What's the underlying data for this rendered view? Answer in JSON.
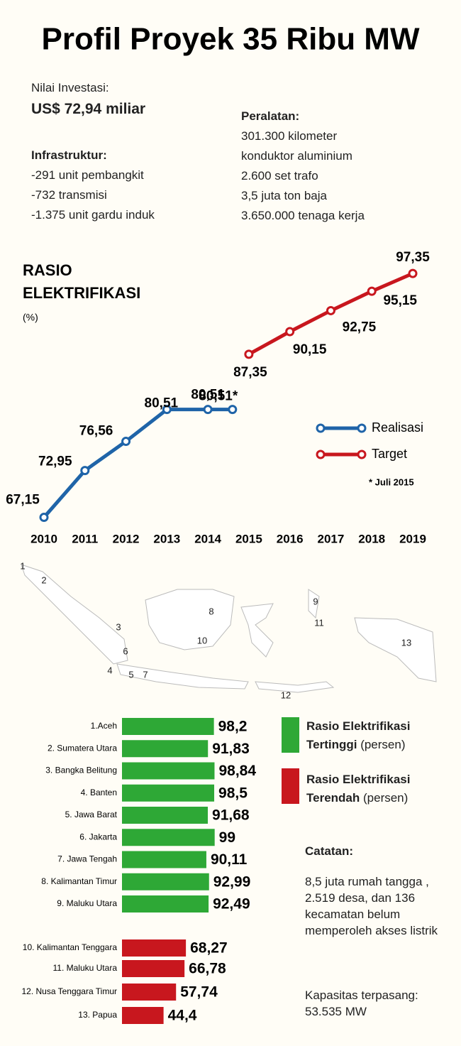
{
  "header": {
    "title": "Profil Proyek 35 Ribu MW"
  },
  "investment": {
    "label": "Nilai Investasi:",
    "value": "US$ 72,94 miliar"
  },
  "infrastructure": {
    "label": "Infrastruktur:",
    "items": [
      "-291 unit pembangkit",
      "-732 transmisi",
      "-1.375 unit gardu induk"
    ]
  },
  "equipment": {
    "label": "Peralatan:",
    "items": [
      "301.300 kilometer",
      "konduktor aluminium",
      "2.600 set trafo",
      "3,5 juta ton baja",
      "3.650.000 tenaga kerja"
    ]
  },
  "map": {
    "labels": [
      "1",
      "2",
      "3",
      "4",
      "5",
      "6",
      "7",
      "8",
      "9",
      "10",
      "11",
      "12",
      "13"
    ]
  },
  "notes": {
    "label": "Catatan:",
    "text": "8,5 juta rumah tangga , 2.519 desa, dan 136 kecamatan belum memperoleh akses listrik",
    "capacity": "Kapasitas terpasang: 53.535 MW"
  },
  "chart_data": [
    {
      "type": "line",
      "title": "RASIO ELEKTRIFIKASI",
      "subtitle": "(%)",
      "note": "* Juli 2015",
      "xlim": [
        2010,
        2019
      ],
      "xticks": [
        2010,
        2011,
        2012,
        2013,
        2014,
        2015,
        2016,
        2017,
        2018,
        2019
      ],
      "ylim": [
        65,
        100
      ],
      "series": [
        {
          "name": "Realisasi",
          "color": "#1f64a8",
          "x": [
            2010,
            2011,
            2012,
            2013,
            2014,
            2014.6
          ],
          "values": [
            67.15,
            72.95,
            76.56,
            80.51,
            80.51,
            80.51
          ],
          "value_labels": [
            "67,15",
            "72,95",
            "76,56",
            "80,51",
            "80,51",
            "80,51*"
          ]
        },
        {
          "name": "Target",
          "color": "#c8171e",
          "x": [
            2015,
            2016,
            2017,
            2018,
            2019
          ],
          "values": [
            87.35,
            90.15,
            92.75,
            95.15,
            97.35
          ],
          "value_labels": [
            "87,35",
            "90,15",
            "92,75",
            "95,15",
            "97,35"
          ]
        }
      ]
    },
    {
      "type": "hbar",
      "name": "Rasio Elektrifikasi Tertinggi",
      "unit": "(persen)",
      "color": "#2ea836",
      "xlim": [
        0,
        100
      ],
      "categories": [
        "1.Aceh",
        "2. Sumatera Utara",
        "3. Bangka Belitung",
        "4. Banten",
        "5. Jawa Barat",
        "6. Jakarta",
        "7. Jawa Tengah",
        "8. Kalimantan Timur",
        "9. Maluku Utara"
      ],
      "values": [
        98.2,
        91.83,
        98.84,
        98.5,
        91.68,
        99,
        90.11,
        92.99,
        92.49
      ],
      "value_labels": [
        "98,2",
        "91,83",
        "98,84",
        "98,5",
        "91,68",
        "99",
        "90,11",
        "92,99",
        "92,49"
      ]
    },
    {
      "type": "hbar",
      "name": "Rasio Elektrifikasi Terendah",
      "unit": "(persen)",
      "color": "#c8171e",
      "xlim": [
        0,
        100
      ],
      "categories": [
        "10. Kalimantan Tenggara",
        "11. Maluku Utara",
        "12. Nusa Tenggara Timur",
        "13. Papua"
      ],
      "values": [
        68.27,
        66.78,
        57.74,
        44.4
      ],
      "value_labels": [
        "68,27",
        "66,78",
        "57,74",
        "44,4"
      ]
    }
  ]
}
